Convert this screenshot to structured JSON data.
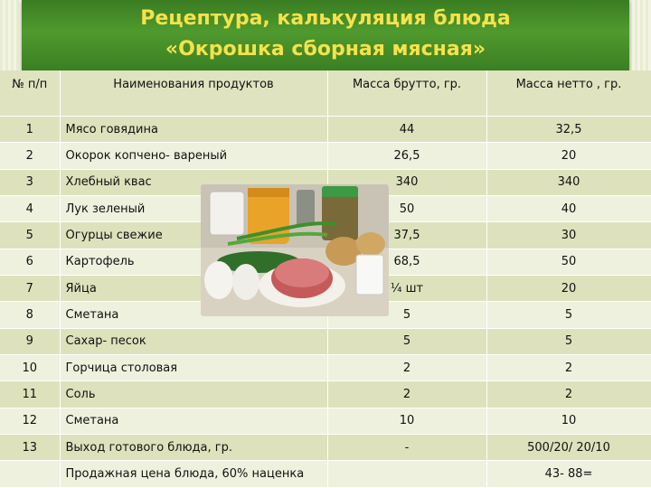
{
  "title_line1": "Рецептура, калькуляция блюда",
  "title_line2": "«Окрошка сборная мясная»",
  "headers": {
    "num": "№ п/п",
    "name": "Наименования продуктов",
    "gross": "Масса брутто, гр.",
    "net": "Масса нетто , гр."
  },
  "rows": [
    {
      "num": "1",
      "name": "Мясо говядина",
      "gross": "44",
      "net": "32,5"
    },
    {
      "num": "2",
      "name": "Окорок копчено- вареный",
      "gross": "26,5",
      "net": "20"
    },
    {
      "num": "3",
      "name": "Хлебный квас",
      "gross": "340",
      "net": "340"
    },
    {
      "num": "4",
      "name": "Лук зеленый",
      "gross": "50",
      "net": "40"
    },
    {
      "num": "5",
      "name": "Огурцы свежие",
      "gross": "37,5",
      "net": "30"
    },
    {
      "num": "6",
      "name": "Картофель",
      "gross": "68,5",
      "net": "50"
    },
    {
      "num": "7",
      "name": "Яйца",
      "gross": "¼ шт",
      "net": "20"
    },
    {
      "num": "8",
      "name": "Сметана",
      "gross": "5",
      "net": "5"
    },
    {
      "num": "9",
      "name": "Сахар- песок",
      "gross": "5",
      "net": "5"
    },
    {
      "num": "10",
      "name": "Горчица столовая",
      "gross": "2",
      "net": "2"
    },
    {
      "num": "11",
      "name": "Соль",
      "gross": "2",
      "net": "2"
    },
    {
      "num": "12",
      "name": "Сметана",
      "gross": "10",
      "net": "10"
    },
    {
      "num": "13",
      "name": "Выход готового блюда, гр.",
      "gross": "-",
      "net": "500/20/ 20/10"
    },
    {
      "num": "",
      "name": "Продажная цена блюда, 60% наценка",
      "gross": "",
      "net": "43- 88="
    }
  ],
  "colors": {
    "banner": "#4f9a2e",
    "title": "#f6e24a"
  }
}
